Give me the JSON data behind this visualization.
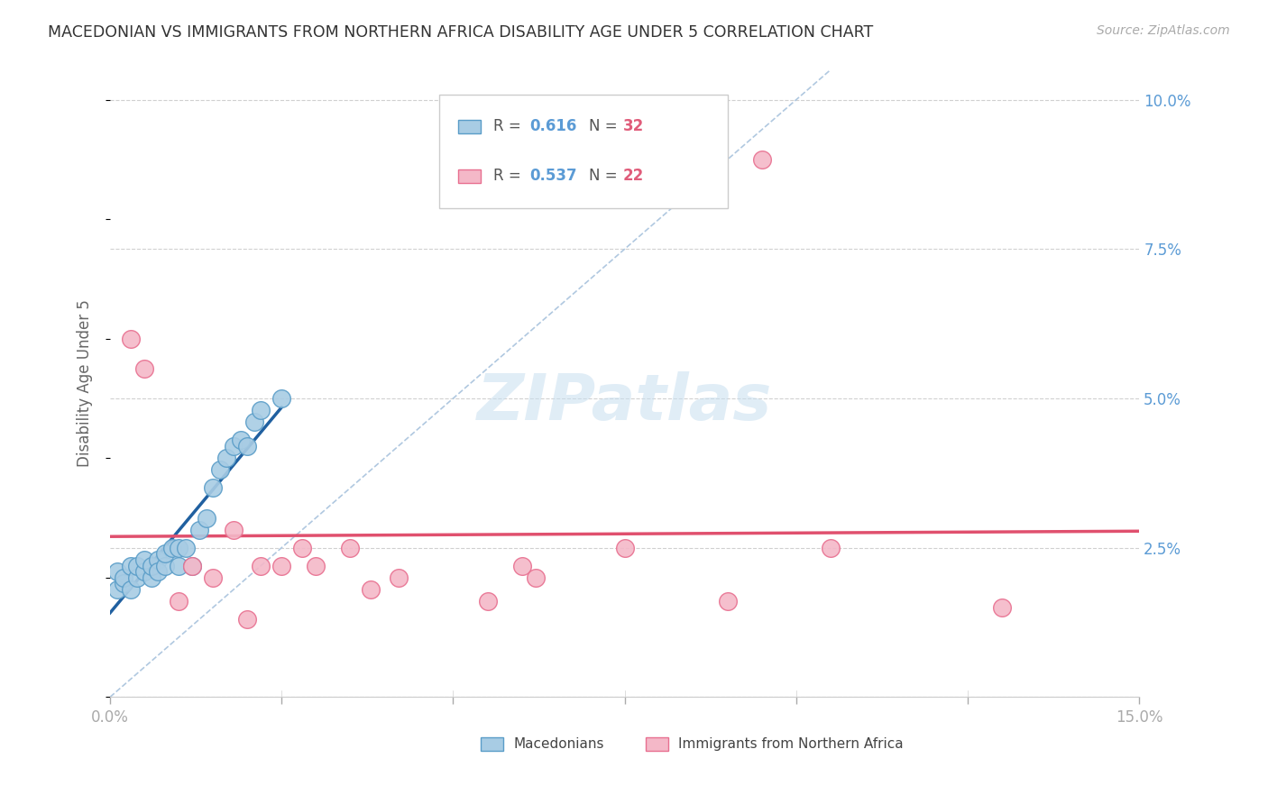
{
  "title": "MACEDONIAN VS IMMIGRANTS FROM NORTHERN AFRICA DISABILITY AGE UNDER 5 CORRELATION CHART",
  "source": "Source: ZipAtlas.com",
  "ylabel": "Disability Age Under 5",
  "xlim": [
    0.0,
    0.15
  ],
  "ylim": [
    0.0,
    0.105
  ],
  "xtick_positions": [
    0.0,
    0.025,
    0.05,
    0.075,
    0.1,
    0.125,
    0.15
  ],
  "xtick_labels": [
    "0.0%",
    "",
    "",
    "",
    "",
    "",
    "15.0%"
  ],
  "ytick_positions": [
    0.0,
    0.025,
    0.05,
    0.075,
    0.1
  ],
  "ytick_labels_right": [
    "",
    "2.5%",
    "5.0%",
    "7.5%",
    "10.0%"
  ],
  "macedonian_color": "#a8cce4",
  "immigrant_color": "#f4b8c8",
  "macedonian_edge": "#5a9dc8",
  "immigrant_edge": "#e87090",
  "trend_macedonian_color": "#2060a0",
  "trend_immigrant_color": "#e0506e",
  "diag_color": "#b0c8e0",
  "R_macedonian": 0.616,
  "N_macedonian": 32,
  "R_immigrant": 0.537,
  "N_immigrant": 22,
  "macedonian_x": [
    0.001,
    0.001,
    0.002,
    0.002,
    0.003,
    0.003,
    0.004,
    0.004,
    0.005,
    0.005,
    0.006,
    0.006,
    0.007,
    0.007,
    0.008,
    0.008,
    0.009,
    0.01,
    0.01,
    0.011,
    0.012,
    0.013,
    0.014,
    0.015,
    0.016,
    0.017,
    0.018,
    0.019,
    0.02,
    0.021,
    0.022,
    0.025
  ],
  "macedonian_y": [
    0.018,
    0.021,
    0.019,
    0.02,
    0.018,
    0.022,
    0.02,
    0.022,
    0.021,
    0.023,
    0.02,
    0.022,
    0.023,
    0.021,
    0.022,
    0.024,
    0.025,
    0.022,
    0.025,
    0.025,
    0.022,
    0.028,
    0.03,
    0.035,
    0.038,
    0.04,
    0.042,
    0.043,
    0.042,
    0.046,
    0.048,
    0.05
  ],
  "immigrant_x": [
    0.003,
    0.005,
    0.01,
    0.012,
    0.015,
    0.018,
    0.02,
    0.022,
    0.025,
    0.028,
    0.03,
    0.035,
    0.038,
    0.042,
    0.055,
    0.06,
    0.062,
    0.075,
    0.09,
    0.095,
    0.105,
    0.13
  ],
  "immigrant_y": [
    0.06,
    0.055,
    0.016,
    0.022,
    0.02,
    0.028,
    0.013,
    0.022,
    0.022,
    0.025,
    0.022,
    0.025,
    0.018,
    0.02,
    0.016,
    0.022,
    0.02,
    0.025,
    0.016,
    0.09,
    0.025,
    0.015
  ],
  "watermark": "ZIPatlas",
  "background_color": "#ffffff",
  "grid_color": "#d0d0d0"
}
